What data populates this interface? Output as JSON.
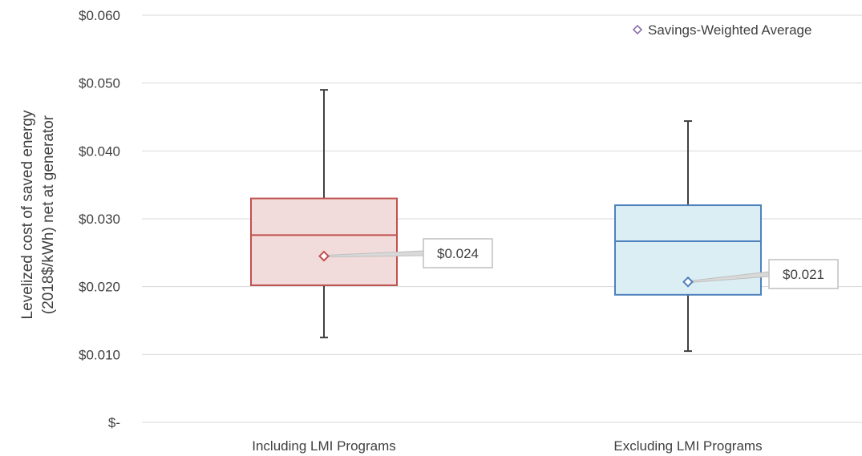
{
  "chart_data": {
    "type": "box",
    "title": "",
    "ylabel_lines": [
      "Levelized cost of saved energy",
      "(2018$/kWh) net at generator"
    ],
    "ylim": [
      0,
      0.06
    ],
    "yticks": [
      0,
      0.01,
      0.02,
      0.03,
      0.04,
      0.05,
      0.06
    ],
    "ytick_labels": [
      "$-",
      "$0.010",
      "$0.020",
      "$0.030",
      "$0.040",
      "$0.050",
      "$0.060"
    ],
    "grid": true,
    "legend": {
      "label": "Savings-Weighted Average",
      "marker": "diamond",
      "position": "top-right"
    },
    "categories": [
      "Including LMI Programs",
      "Excluding LMI Programs"
    ],
    "boxes": [
      {
        "category": "Including LMI Programs",
        "whisker_low": 0.0125,
        "q1": 0.0202,
        "median": 0.0276,
        "q3": 0.033,
        "whisker_high": 0.049,
        "mean": 0.0245,
        "mean_label": "$0.024",
        "stroke": "#c0504d",
        "fill": "#f2dcdb"
      },
      {
        "category": "Excluding LMI Programs",
        "whisker_low": 0.0105,
        "q1": 0.0188,
        "median": 0.0267,
        "q3": 0.032,
        "whisker_high": 0.0444,
        "mean": 0.0207,
        "mean_label": "$0.021",
        "stroke": "#4f81bd",
        "fill": "#dbeef4"
      }
    ],
    "colors": {
      "grid": "#d9d9d9",
      "whisker": "#404040",
      "legend_marker": "#8064a2",
      "callout_border": "#bfbfbf"
    }
  }
}
